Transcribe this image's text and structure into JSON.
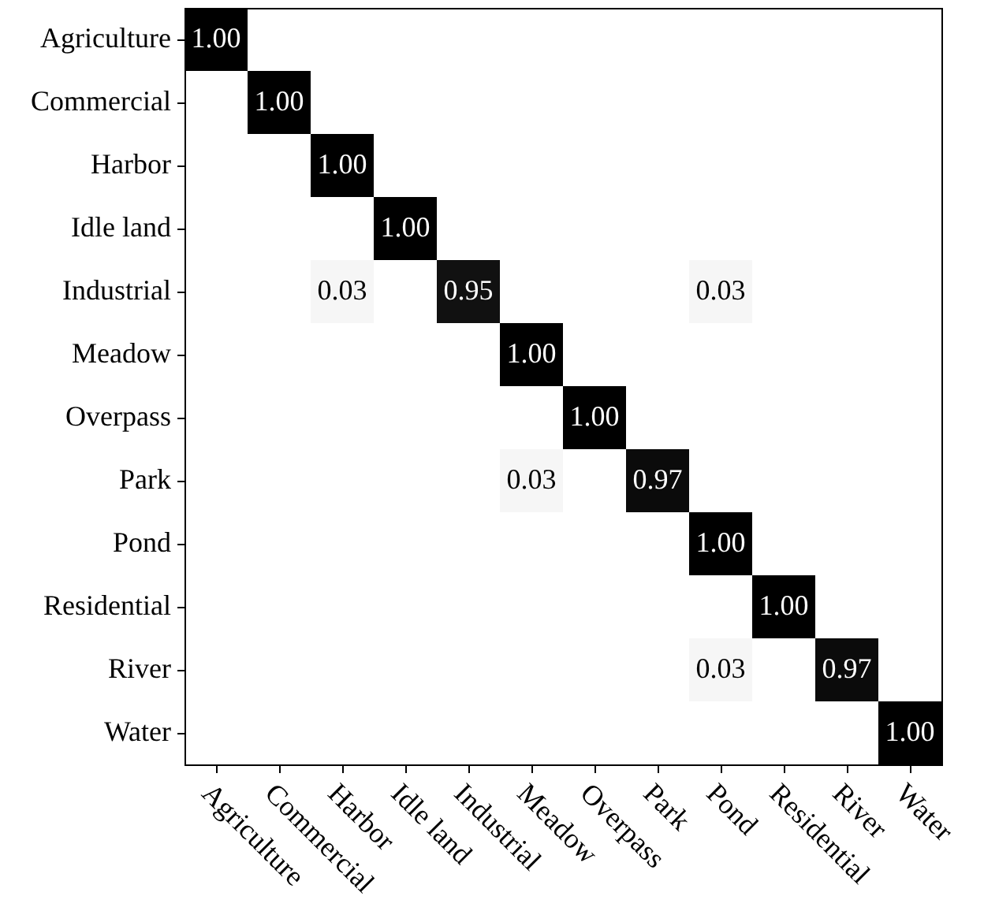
{
  "chart_data": {
    "type": "heatmap",
    "categories": [
      "Agriculture",
      "Commercial",
      "Harbor",
      "Idle land",
      "Industrial",
      "Meadow",
      "Overpass",
      "Park",
      "Pond",
      "Residential",
      "River",
      "Water"
    ],
    "y_categories": [
      "Agriculture",
      "Commercial",
      "Harbor",
      "Idle land",
      "Industrial",
      "Meadow",
      "Overpass",
      "Park",
      "Pond",
      "Residential",
      "River",
      "Water"
    ],
    "cells": [
      [
        1.0,
        null,
        null,
        null,
        null,
        null,
        null,
        null,
        null,
        null,
        null,
        null
      ],
      [
        null,
        1.0,
        null,
        null,
        null,
        null,
        null,
        null,
        null,
        null,
        null,
        null
      ],
      [
        null,
        null,
        1.0,
        null,
        null,
        null,
        null,
        null,
        null,
        null,
        null,
        null
      ],
      [
        null,
        null,
        null,
        1.0,
        null,
        null,
        null,
        null,
        null,
        null,
        null,
        null
      ],
      [
        null,
        null,
        0.03,
        null,
        0.95,
        null,
        null,
        null,
        0.03,
        null,
        null,
        null
      ],
      [
        null,
        null,
        null,
        null,
        null,
        1.0,
        null,
        null,
        null,
        null,
        null,
        null
      ],
      [
        null,
        null,
        null,
        null,
        null,
        null,
        1.0,
        null,
        null,
        null,
        null,
        null
      ],
      [
        null,
        null,
        null,
        null,
        null,
        0.03,
        null,
        0.97,
        null,
        null,
        null,
        null
      ],
      [
        null,
        null,
        null,
        null,
        null,
        null,
        null,
        null,
        1.0,
        null,
        null,
        null
      ],
      [
        null,
        null,
        null,
        null,
        null,
        null,
        null,
        null,
        null,
        1.0,
        null,
        null
      ],
      [
        null,
        null,
        null,
        null,
        null,
        null,
        null,
        null,
        0.03,
        null,
        0.97,
        null
      ],
      [
        null,
        null,
        null,
        null,
        null,
        null,
        null,
        null,
        null,
        null,
        null,
        1.0
      ]
    ],
    "cell_labels": [
      [
        "1.00",
        null,
        null,
        null,
        null,
        null,
        null,
        null,
        null,
        null,
        null,
        null
      ],
      [
        null,
        "1.00",
        null,
        null,
        null,
        null,
        null,
        null,
        null,
        null,
        null,
        null
      ],
      [
        null,
        null,
        "1.00",
        null,
        null,
        null,
        null,
        null,
        null,
        null,
        null,
        null
      ],
      [
        null,
        null,
        null,
        "1.00",
        null,
        null,
        null,
        null,
        null,
        null,
        null,
        null
      ],
      [
        null,
        null,
        "0.03",
        null,
        "0.95",
        null,
        null,
        null,
        "0.03",
        null,
        null,
        null
      ],
      [
        null,
        null,
        null,
        null,
        null,
        "1.00",
        null,
        null,
        null,
        null,
        null,
        null
      ],
      [
        null,
        null,
        null,
        null,
        null,
        null,
        "1.00",
        null,
        null,
        null,
        null,
        null
      ],
      [
        null,
        null,
        null,
        null,
        null,
        "0.03",
        null,
        "0.97",
        null,
        null,
        null,
        null
      ],
      [
        null,
        null,
        null,
        null,
        null,
        null,
        null,
        null,
        "1.00",
        null,
        null,
        null
      ],
      [
        null,
        null,
        null,
        null,
        null,
        null,
        null,
        null,
        null,
        "1.00",
        null,
        null
      ],
      [
        null,
        null,
        null,
        null,
        null,
        null,
        null,
        null,
        "0.03",
        null,
        "0.97",
        null
      ],
      [
        null,
        null,
        null,
        null,
        null,
        null,
        null,
        null,
        null,
        null,
        null,
        "1.00"
      ]
    ]
  }
}
